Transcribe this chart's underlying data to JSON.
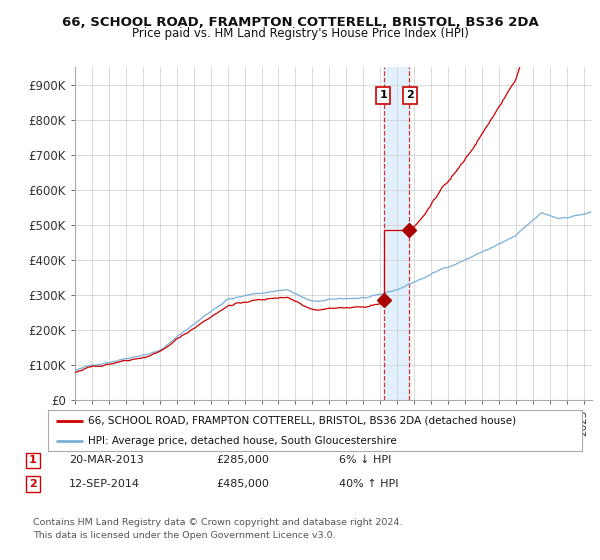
{
  "title_line1": "66, SCHOOL ROAD, FRAMPTON COTTERELL, BRISTOL, BS36 2DA",
  "title_line2": "Price paid vs. HM Land Registry's House Price Index (HPI)",
  "ylim": [
    0,
    950000
  ],
  "yticks": [
    0,
    100000,
    200000,
    300000,
    400000,
    500000,
    600000,
    700000,
    800000,
    900000
  ],
  "ytick_labels": [
    "£0",
    "£100K",
    "£200K",
    "£300K",
    "£400K",
    "£500K",
    "£600K",
    "£700K",
    "£800K",
    "£900K"
  ],
  "hpi_color": "#7ab0d8",
  "price_color": "#cc0000",
  "marker_color": "#aa0000",
  "t1_date": 2013.22,
  "t1_price": 285000,
  "t2_date": 2014.71,
  "t2_price": 485000,
  "legend_line1": "66, SCHOOL ROAD, FRAMPTON COTTERELL, BRISTOL, BS36 2DA (detached house)",
  "legend_line2": "HPI: Average price, detached house, South Gloucestershire",
  "footer": "Contains HM Land Registry data © Crown copyright and database right 2024.\nThis data is licensed under the Open Government Licence v3.0.",
  "xlim_min": 1995.0,
  "xlim_max": 2025.5,
  "vspan_color": "#ddeeff",
  "grid_color": "#cccccc",
  "bg_color": "#ffffff"
}
